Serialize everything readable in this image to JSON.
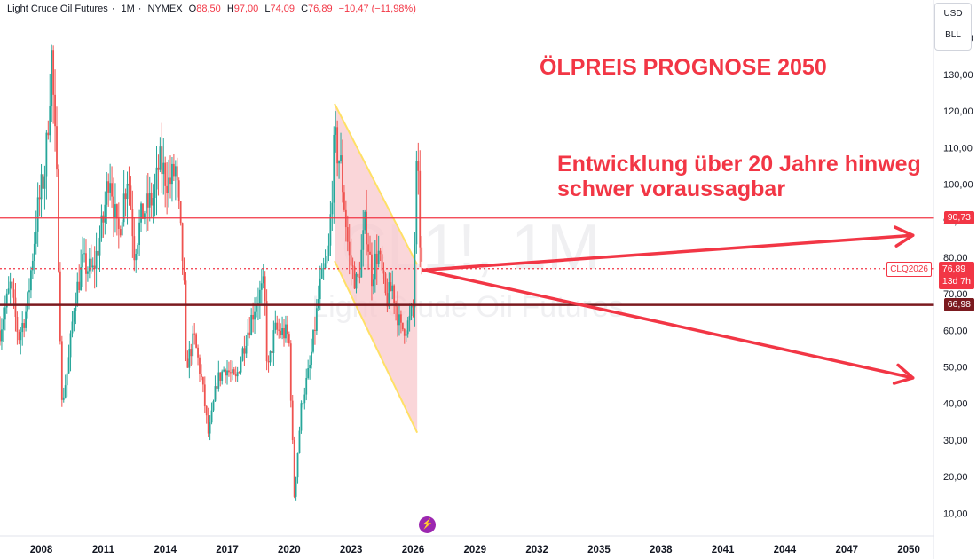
{
  "header": {
    "symbol_name": "Light Crude Oil Futures",
    "interval": "1M",
    "exchange": "NYMEX",
    "open_label": "O",
    "open": "88,50",
    "high_label": "H",
    "high": "97,00",
    "low_label": "L",
    "low": "74,09",
    "close_label": "C",
    "close": "76,89",
    "change": "−10,47 (−11,98%)"
  },
  "currency_box": {
    "currency": "USD",
    "scale": "BLL"
  },
  "watermark": {
    "symbol": "CL1!, 1M",
    "name": "Light Crude Oil Futures"
  },
  "annotations": {
    "title": "ÖLPREIS PROGNOSE 2050",
    "subtitle": "Entwicklung über 20 Jahre hinweg schwer voraussagbar"
  },
  "price_tags": {
    "level_upper": "90,73",
    "contract": "CLQ2026",
    "last": "76,89",
    "countdown": "13d 7h",
    "level_lower": "66,98"
  },
  "colors": {
    "up": "#26a69a",
    "down": "#ef5350",
    "accent": "#f23645",
    "dark_line": "#7b1a1f",
    "wedge_fill": "#f8c8cc",
    "wedge_line": "#ffe066"
  },
  "icons": {
    "flash": "lightning-icon"
  },
  "chart_data": {
    "type": "candlestick",
    "title": "",
    "x_axis": {
      "ticks": [
        "2008",
        "2011",
        "2014",
        "2017",
        "2020",
        "2023",
        "2026",
        "2029",
        "2032",
        "2035",
        "2038",
        "2041",
        "2044",
        "2047",
        "2050"
      ],
      "range": [
        2006,
        2051.2
      ]
    },
    "y_axis": {
      "ticks": [
        "10,00",
        "20,00",
        "30,00",
        "40,00",
        "50,00",
        "60,00",
        "70,00",
        "80,00",
        "90,00",
        "100,00",
        "110,00",
        "120,00",
        "130,00",
        "140,00"
      ],
      "range": [
        4,
        147
      ],
      "position": "right"
    },
    "grid": false,
    "legend": "none",
    "anchors": [
      {
        "x": 2006.0,
        "y": 60
      },
      {
        "x": 2006.5,
        "y": 72
      },
      {
        "x": 2006.9,
        "y": 58
      },
      {
        "x": 2007.3,
        "y": 66
      },
      {
        "x": 2007.8,
        "y": 92
      },
      {
        "x": 2008.2,
        "y": 105
      },
      {
        "x": 2008.5,
        "y": 135
      },
      {
        "x": 2008.75,
        "y": 100
      },
      {
        "x": 2009.0,
        "y": 40
      },
      {
        "x": 2009.3,
        "y": 50
      },
      {
        "x": 2009.6,
        "y": 68
      },
      {
        "x": 2010.0,
        "y": 78
      },
      {
        "x": 2010.5,
        "y": 76
      },
      {
        "x": 2011.0,
        "y": 90
      },
      {
        "x": 2011.3,
        "y": 105
      },
      {
        "x": 2011.7,
        "y": 85
      },
      {
        "x": 2012.2,
        "y": 104
      },
      {
        "x": 2012.5,
        "y": 82
      },
      {
        "x": 2012.9,
        "y": 92
      },
      {
        "x": 2013.5,
        "y": 97
      },
      {
        "x": 2013.7,
        "y": 106
      },
      {
        "x": 2014.2,
        "y": 100
      },
      {
        "x": 2014.5,
        "y": 104
      },
      {
        "x": 2014.9,
        "y": 75
      },
      {
        "x": 2015.0,
        "y": 50
      },
      {
        "x": 2015.4,
        "y": 58
      },
      {
        "x": 2015.8,
        "y": 45
      },
      {
        "x": 2016.1,
        "y": 31
      },
      {
        "x": 2016.5,
        "y": 46
      },
      {
        "x": 2016.9,
        "y": 50
      },
      {
        "x": 2017.4,
        "y": 46
      },
      {
        "x": 2017.9,
        "y": 58
      },
      {
        "x": 2018.4,
        "y": 68
      },
      {
        "x": 2018.8,
        "y": 72
      },
      {
        "x": 2018.95,
        "y": 48
      },
      {
        "x": 2019.3,
        "y": 60
      },
      {
        "x": 2019.9,
        "y": 59
      },
      {
        "x": 2020.0,
        "y": 56
      },
      {
        "x": 2020.25,
        "y": 15
      },
      {
        "x": 2020.6,
        "y": 40
      },
      {
        "x": 2021.0,
        "y": 50
      },
      {
        "x": 2021.5,
        "y": 72
      },
      {
        "x": 2021.9,
        "y": 80
      },
      {
        "x": 2022.2,
        "y": 112
      },
      {
        "x": 2022.5,
        "y": 105
      },
      {
        "x": 2022.9,
        "y": 80
      },
      {
        "x": 2023.3,
        "y": 72
      },
      {
        "x": 2023.7,
        "y": 90
      },
      {
        "x": 2024.0,
        "y": 75
      },
      {
        "x": 2024.3,
        "y": 82
      },
      {
        "x": 2024.7,
        "y": 68
      },
      {
        "x": 2025.0,
        "y": 72
      },
      {
        "x": 2025.4,
        "y": 60
      },
      {
        "x": 2025.8,
        "y": 62
      },
      {
        "x": 2026.0,
        "y": 66
      },
      {
        "x": 2026.2,
        "y": 110
      },
      {
        "x": 2026.3,
        "y": 88
      },
      {
        "x": 2026.42,
        "y": 76.89
      }
    ],
    "horizontal_lines": [
      90.73,
      76.89,
      66.98
    ],
    "wedge": {
      "upper_edge": [
        {
          "x": 2022.2,
          "y": 122
        },
        {
          "x": 2026.2,
          "y": 78
        }
      ],
      "lower_edge": [
        {
          "x": 2022.2,
          "y": 79
        },
        {
          "x": 2026.2,
          "y": 32
        }
      ]
    },
    "arrows": [
      {
        "from": {
          "x": 2026.5,
          "y": 76.5
        },
        "to": {
          "x": 2050.2,
          "y": 86
        }
      },
      {
        "from": {
          "x": 2026.5,
          "y": 76.5
        },
        "to": {
          "x": 2050.2,
          "y": 47
        }
      }
    ]
  }
}
